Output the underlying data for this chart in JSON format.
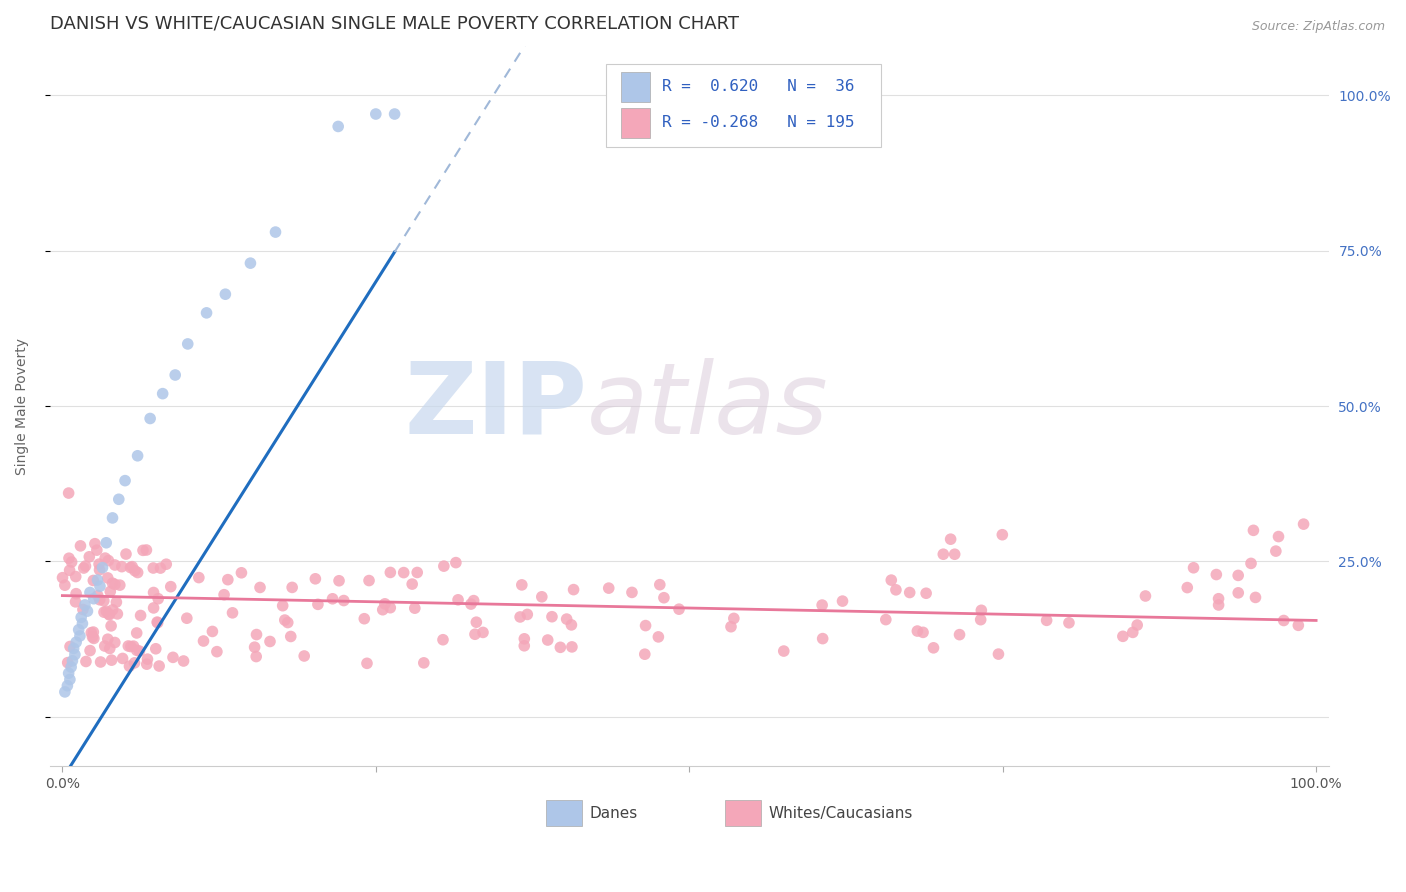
{
  "title": "DANISH VS WHITE/CAUCASIAN SINGLE MALE POVERTY CORRELATION CHART",
  "source": "Source: ZipAtlas.com",
  "ylabel": "Single Male Poverty",
  "danes_R": 0.62,
  "danes_N": 36,
  "whites_R": -0.268,
  "whites_N": 195,
  "danes_color": "#aec6e8",
  "whites_color": "#f4a7b9",
  "danes_line_color": "#1f6dbf",
  "whites_line_color": "#e8789a",
  "danes_ext_color": "#a0b8d8",
  "legend_danes_label": "Danes",
  "legend_whites_label": "Whites/Caucasians",
  "watermark_zip": "ZIP",
  "watermark_atlas": "atlas",
  "background_color": "#ffffff",
  "grid_color": "#e0e0e0",
  "right_tick_color": "#4472c4",
  "title_color": "#333333",
  "source_color": "#999999",
  "ylabel_color": "#666666"
}
